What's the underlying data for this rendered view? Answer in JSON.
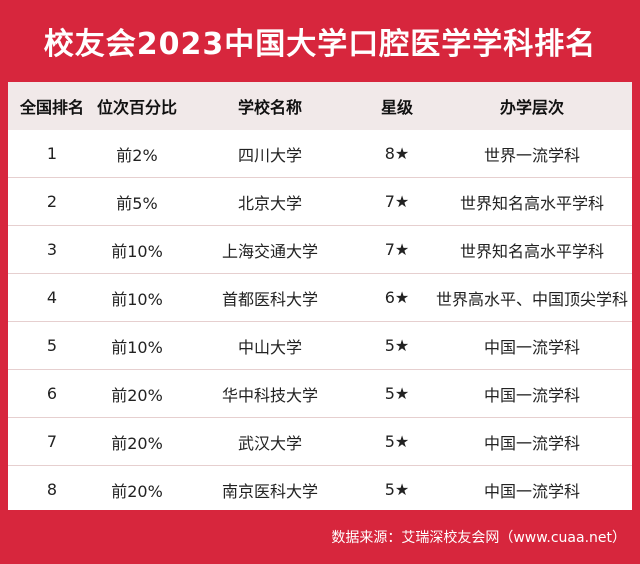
{
  "title": "校友会2023中国大学口腔医学学科排名",
  "headers": [
    "全国排名",
    "位次百分比",
    "学校名称",
    "星级",
    "办学层次"
  ],
  "rows": [
    [
      "1",
      "前2%",
      "四川大学",
      "8★",
      "世界一流学科"
    ],
    [
      "2",
      "前5%",
      "北京大学",
      "7★",
      "世界知名高水平学科"
    ],
    [
      "3",
      "前10%",
      "上海交通大学",
      "7★",
      "世界知名高水平学科"
    ],
    [
      "4",
      "前10%",
      "首都医科大学",
      "6★",
      "世界高水平、中国顶尖学科"
    ],
    [
      "5",
      "前10%",
      "中山大学",
      "5★",
      "中国一流学科"
    ],
    [
      "6",
      "前20%",
      "华中科技大学",
      "5★",
      "中国一流学科"
    ],
    [
      "7",
      "前20%",
      "武汉大学",
      "5★",
      "中国一流学科"
    ],
    [
      "8",
      "前20%",
      "南京医科大学",
      "5★",
      "中国一流学科"
    ]
  ],
  "footer": "数据来源：艾瑞深校友会网（www.cuaa.net）",
  "colors": {
    "background": "#d7263d",
    "header_row": "#f1e9e9",
    "table": "#ffffff"
  }
}
